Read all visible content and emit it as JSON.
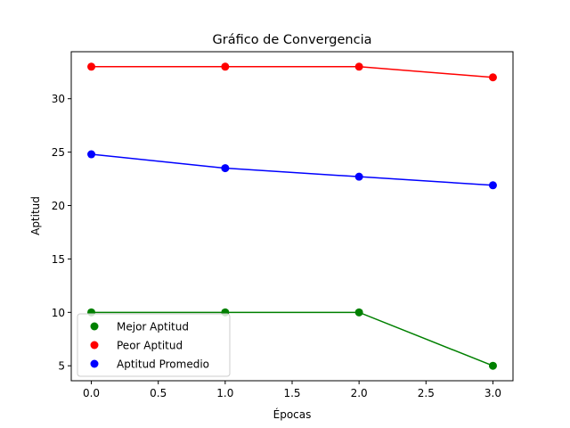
{
  "chart_data": {
    "type": "line",
    "title": "Gráfico de Convergencia",
    "xlabel": "Épocas",
    "ylabel": "Aptitud",
    "x": [
      0,
      1,
      2,
      3
    ],
    "xlim": [
      -0.15,
      3.15
    ],
    "ylim": [
      3.6,
      34.4
    ],
    "xticks": [
      0.0,
      0.5,
      1.0,
      1.5,
      2.0,
      2.5,
      3.0
    ],
    "xtick_labels": [
      "0.0",
      "0.5",
      "1.0",
      "1.5",
      "2.0",
      "2.5",
      "3.0"
    ],
    "yticks": [
      5,
      10,
      15,
      20,
      25,
      30
    ],
    "ytick_labels": [
      "5",
      "10",
      "15",
      "20",
      "25",
      "30"
    ],
    "grid": false,
    "legend_position": "bottom-left",
    "series": [
      {
        "name": "Mejor Aptitud",
        "color": "#008000",
        "values": [
          10,
          10,
          10,
          5
        ]
      },
      {
        "name": "Peor Aptitud",
        "color": "#ff0000",
        "values": [
          33,
          33,
          33,
          32
        ]
      },
      {
        "name": "Aptitud Promedio",
        "color": "#0000ff",
        "values": [
          24.8,
          23.5,
          22.7,
          21.9
        ]
      }
    ]
  }
}
